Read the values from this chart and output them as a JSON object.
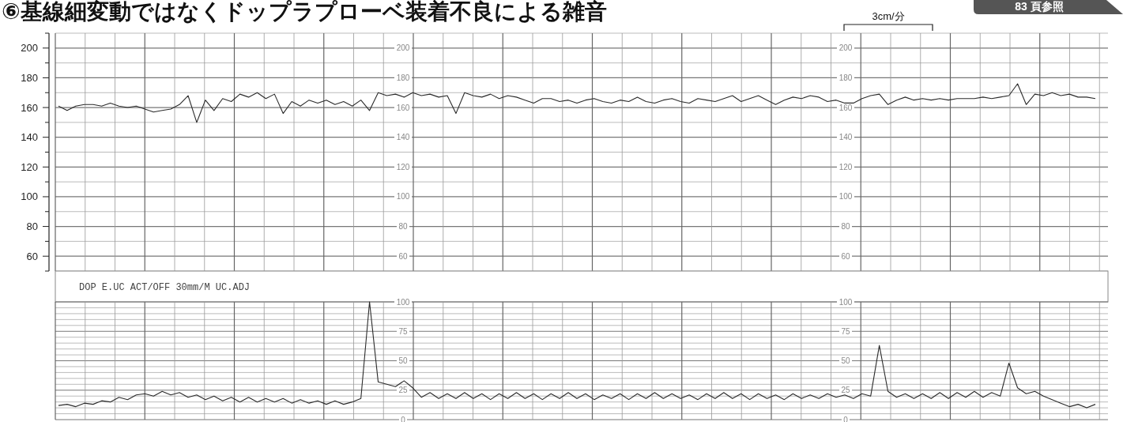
{
  "chart_data": [
    {
      "type": "line",
      "title": "⑥基線細変動ではなくドップラプローベ装着不良による雑音",
      "annotations": [
        "3cm/分",
        "83 頁参照"
      ],
      "categories": [
        null,
        null,
        null,
        null,
        null,
        null,
        null,
        null,
        null,
        null,
        null,
        null,
        null,
        null,
        null,
        null,
        null,
        null,
        null,
        null,
        null,
        null,
        null,
        null,
        null,
        null,
        null,
        null,
        null,
        null,
        null,
        null,
        null,
        null,
        null,
        null,
        null,
        null,
        null,
        null,
        null,
        null,
        null,
        null,
        null,
        null,
        null,
        null,
        null,
        null,
        null,
        null,
        null,
        null,
        null,
        null,
        null,
        null,
        null,
        null,
        null,
        null,
        null,
        null,
        null,
        null,
        null,
        null,
        null,
        null,
        null,
        null,
        null,
        null,
        null,
        null,
        null,
        null,
        null,
        null,
        null,
        null,
        null,
        null,
        null,
        null,
        null,
        null,
        null,
        null,
        null,
        null,
        null,
        null,
        null,
        null,
        null,
        null,
        null,
        null,
        null,
        null,
        null,
        null,
        null,
        null,
        null,
        null,
        null,
        null,
        null,
        null,
        null,
        null,
        null,
        null,
        null,
        null,
        null,
        null,
        null
      ],
      "series": [
        {
          "color": "#2b2b2b",
          "values": [
            161,
            158,
            161,
            162,
            162,
            161,
            163,
            161,
            160,
            161,
            159,
            157,
            158,
            159,
            162,
            168,
            150,
            165,
            158,
            166,
            164,
            169,
            167,
            170,
            166,
            169,
            156,
            164,
            161,
            165,
            163,
            165,
            162,
            164,
            161,
            165,
            158,
            170,
            168,
            169,
            167,
            170,
            168,
            169,
            167,
            168,
            156,
            170,
            168,
            167,
            169,
            166,
            168,
            167,
            165,
            163,
            166,
            166,
            164,
            165,
            163,
            165,
            166,
            164,
            163,
            165,
            164,
            167,
            164,
            163,
            165,
            166,
            164,
            163,
            166,
            165,
            164,
            166,
            168,
            164,
            166,
            168,
            165,
            162,
            165,
            167,
            166,
            168,
            167,
            164,
            165,
            163,
            163,
            166,
            168,
            169,
            162,
            165,
            167,
            165,
            166,
            165,
            166,
            165,
            166,
            166,
            166,
            167,
            166,
            167,
            168,
            176,
            162,
            169,
            168,
            170,
            168,
            169,
            167,
            167,
            166
          ]
        }
      ],
      "ylim": [
        50,
        210
      ],
      "yticks": [
        {
          "value": 50,
          "label": null
        },
        60,
        {
          "value": 70,
          "label": null
        },
        80,
        {
          "value": 90,
          "label": null
        },
        100,
        {
          "value": 110,
          "label": null
        },
        120,
        {
          "value": 130,
          "label": null
        },
        140,
        {
          "value": 150,
          "label": null
        },
        160,
        {
          "value": 170,
          "label": null
        },
        180,
        {
          "value": 190,
          "label": null
        },
        200,
        {
          "value": 210,
          "label": null
        }
      ],
      "y2lim": [
        50,
        210
      ],
      "y2ticks": [
        60,
        80,
        100,
        120,
        140,
        160,
        180,
        200
      ],
      "y3lim": [
        50,
        210
      ],
      "y3ticks": [
        60,
        80,
        100,
        120,
        140,
        160,
        180,
        200
      ],
      "grid": true,
      "tick_labels": "y"
    },
    {
      "type": "line",
      "annotations": [
        "DOP E.UC ACT/OFF 30mm/M UC.ADJ"
      ],
      "categories": [
        null,
        null,
        null,
        null,
        null,
        null,
        null,
        null,
        null,
        null,
        null,
        null,
        null,
        null,
        null,
        null,
        null,
        null,
        null,
        null,
        null,
        null,
        null,
        null,
        null,
        null,
        null,
        null,
        null,
        null,
        null,
        null,
        null,
        null,
        null,
        null,
        null,
        null,
        null,
        null,
        null,
        null,
        null,
        null,
        null,
        null,
        null,
        null,
        null,
        null,
        null,
        null,
        null,
        null,
        null,
        null,
        null,
        null,
        null,
        null,
        null,
        null,
        null,
        null,
        null,
        null,
        null,
        null,
        null,
        null,
        null,
        null,
        null,
        null,
        null,
        null,
        null,
        null,
        null,
        null,
        null,
        null,
        null,
        null,
        null,
        null,
        null,
        null,
        null,
        null,
        null,
        null,
        null,
        null,
        null,
        null,
        null,
        null,
        null,
        null,
        null,
        null,
        null,
        null,
        null,
        null,
        null,
        null,
        null,
        null,
        null,
        null,
        null,
        null,
        null,
        null,
        null,
        null,
        null,
        null,
        null
      ],
      "series": [
        {
          "color": "#2b2b2b",
          "values": [
            12,
            13,
            11,
            14,
            13,
            16,
            15,
            19,
            17,
            21,
            22,
            20,
            24,
            21,
            23,
            19,
            21,
            17,
            20,
            16,
            19,
            15,
            19,
            15,
            18,
            15,
            18,
            14,
            17,
            14,
            16,
            13,
            16,
            13,
            15,
            18,
            100,
            32,
            30,
            28,
            33,
            27,
            19,
            23,
            18,
            22,
            18,
            23,
            18,
            22,
            17,
            22,
            18,
            23,
            18,
            22,
            17,
            22,
            18,
            23,
            18,
            22,
            17,
            21,
            18,
            22,
            17,
            22,
            18,
            23,
            18,
            22,
            18,
            21,
            17,
            22,
            18,
            23,
            18,
            22,
            17,
            22,
            18,
            21,
            17,
            22,
            18,
            21,
            18,
            22,
            19,
            21,
            18,
            22,
            20,
            63,
            24,
            19,
            22,
            18,
            22,
            18,
            23,
            18,
            23,
            19,
            24,
            19,
            23,
            20,
            48,
            27,
            22,
            24,
            20,
            17,
            14,
            11,
            13,
            10,
            13
          ]
        }
      ],
      "ylim": [
        0,
        100
      ],
      "yticks": [
        0,
        {
          "value": 5,
          "label": null
        },
        {
          "value": 10,
          "label": null
        },
        {
          "value": 15,
          "label": null
        },
        {
          "value": 20,
          "label": null
        },
        25,
        {
          "value": 30,
          "label": null
        },
        {
          "value": 35,
          "label": null
        },
        {
          "value": 40,
          "label": null
        },
        {
          "value": 45,
          "label": null
        },
        50,
        {
          "value": 55,
          "label": null
        },
        {
          "value": 60,
          "label": null
        },
        {
          "value": 65,
          "label": null
        },
        {
          "value": 70,
          "label": null
        },
        75,
        {
          "value": 80,
          "label": null
        },
        {
          "value": 85,
          "label": null
        },
        {
          "value": 90,
          "label": null
        },
        {
          "value": 95,
          "label": null
        },
        100
      ],
      "y2lim": [
        0,
        100
      ],
      "y2ticks": [
        0,
        25,
        50,
        75,
        100
      ],
      "grid": true,
      "tick_labels": "y"
    }
  ]
}
